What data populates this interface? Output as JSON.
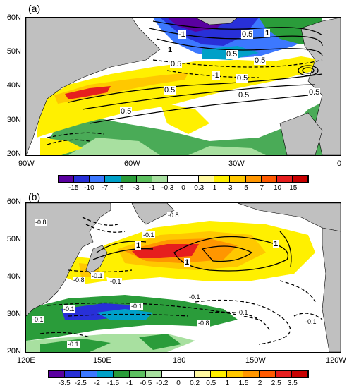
{
  "panel_a": {
    "label": "(a)",
    "lat_ticks": [
      "60N",
      "50N",
      "40N",
      "30N",
      "20N"
    ],
    "lon_ticks": [
      "90W",
      "60W",
      "30W",
      "0"
    ],
    "colorbar_labels": [
      "-15",
      "-10",
      "-7",
      "-5",
      "-3",
      "-1",
      "-0.3",
      "0",
      "0.3",
      "1",
      "3",
      "5",
      "7",
      "10",
      "15"
    ],
    "colorbar_colors": [
      "#5a00a0",
      "#2830d8",
      "#3c78ff",
      "#00a0c8",
      "#2a9c3a",
      "#5cc060",
      "#a8e0a0",
      "#ffffff",
      "#ffffff",
      "#fff8a0",
      "#fff000",
      "#ffc800",
      "#ff9600",
      "#ff5a00",
      "#e61e1e",
      "#c80000"
    ],
    "contour_labels": [
      "-1",
      "0.5",
      "1",
      "0.5",
      "1",
      "0.5",
      "0.5",
      "-1",
      "0.5",
      "0.5",
      "0.5",
      "0.5",
      "0.5"
    ]
  },
  "panel_b": {
    "label": "(b)",
    "lat_ticks": [
      "60N",
      "50N",
      "40N",
      "30N",
      "20N"
    ],
    "lon_ticks": [
      "120E",
      "150E",
      "180",
      "150W",
      "120W"
    ],
    "colorbar_labels": [
      "-3.5",
      "-2.5",
      "-2",
      "-1.5",
      "-1",
      "-0.5",
      "-0.2",
      "0",
      "0.2",
      "0.5",
      "1",
      "1.5",
      "2",
      "2.5",
      "3.5"
    ],
    "colorbar_colors": [
      "#5a00a0",
      "#2830d8",
      "#3c78ff",
      "#00a0c8",
      "#2a9c3a",
      "#5cc060",
      "#a8e0a0",
      "#ffffff",
      "#ffffff",
      "#fff8a0",
      "#fff000",
      "#ffc800",
      "#ff9600",
      "#ff5a00",
      "#e61e1e",
      "#c80000"
    ],
    "contour_labels": [
      "-0.8",
      "-0.1",
      "1",
      "-0.1",
      "-0.8",
      "-0.1",
      "1",
      "1",
      "-0.1",
      "-0.1",
      "-0.8",
      "-0.1",
      "-0.1",
      "-0.8",
      "-0.1",
      "-0.1",
      "-0.1"
    ]
  }
}
